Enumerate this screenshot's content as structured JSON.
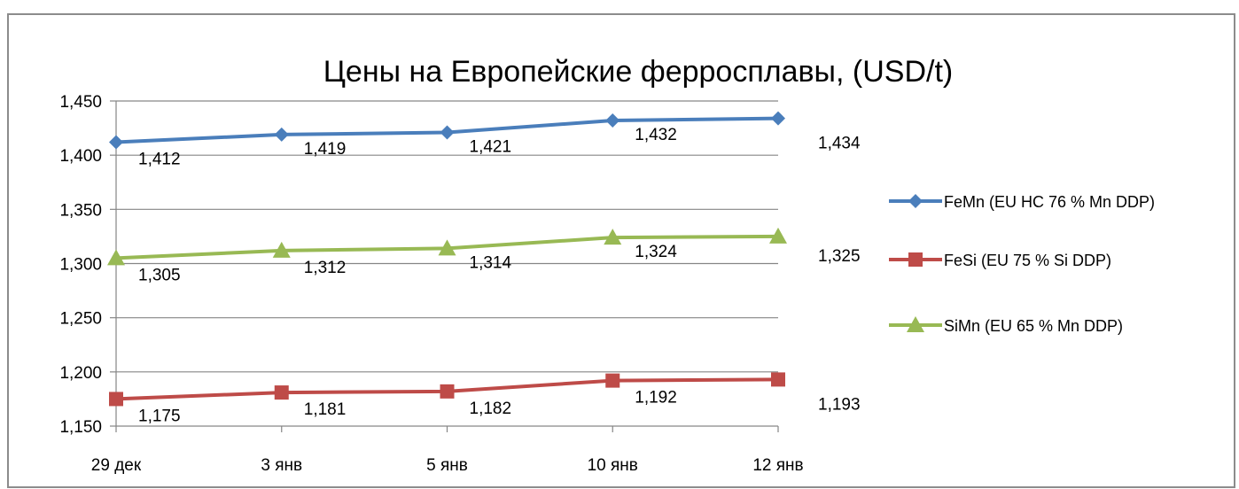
{
  "chart_data": {
    "type": "line",
    "title": "Цены на Европейские ферросплавы, (USD/t)",
    "categories": [
      "29 дек",
      "3 янв",
      "5 янв",
      "10 янв",
      "12 янв"
    ],
    "ylim": [
      1150,
      1450
    ],
    "yticks": [
      1150,
      1200,
      1250,
      1300,
      1350,
      1400,
      1450
    ],
    "ytick_labels": [
      "1,150",
      "1,200",
      "1,250",
      "1,300",
      "1,350",
      "1,400",
      "1,450"
    ],
    "grid": true,
    "legend_position": "right",
    "series": [
      {
        "name": "FeMn (EU HC 76 % Mn DDP)",
        "marker": "diamond",
        "color": "#4A7EBB",
        "values": [
          1412,
          1419,
          1421,
          1432,
          1434
        ],
        "labels": [
          "1,412",
          "1,419",
          "1,421",
          "1,432",
          "1,434"
        ]
      },
      {
        "name": "FeSi (EU 75 % Si DDP)",
        "marker": "square",
        "color": "#BE4B48",
        "values": [
          1175,
          1181,
          1182,
          1192,
          1193
        ],
        "labels": [
          "1,175",
          "1,181",
          "1,182",
          "1,192",
          "1,193"
        ]
      },
      {
        "name": "SiMn (EU 65 % Mn DDP)",
        "marker": "triangle",
        "color": "#98B954",
        "values": [
          1305,
          1312,
          1314,
          1324,
          1325
        ],
        "labels": [
          "1,305",
          "1,312",
          "1,314",
          "1,324",
          "1,325"
        ]
      }
    ]
  }
}
